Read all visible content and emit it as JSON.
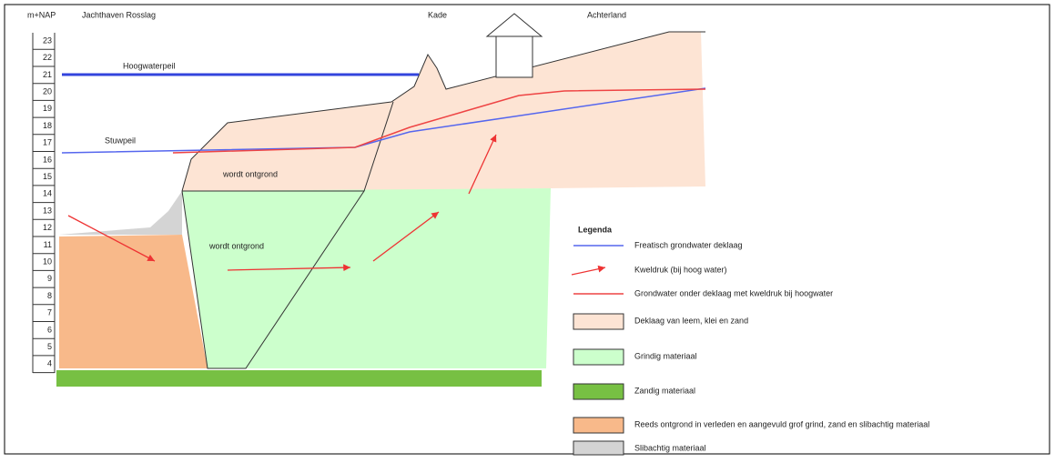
{
  "header": {
    "unit": "m+NAP",
    "left": "Jachthaven Rosslag",
    "middle": "Kade",
    "right": "Achterland"
  },
  "scale": [
    "23",
    "22",
    "21",
    "20",
    "19",
    "18",
    "17",
    "16",
    "15",
    "14",
    "13",
    "12",
    "11",
    "10",
    "9",
    "8",
    "7",
    "6",
    "5",
    "4"
  ],
  "annotations": {
    "high_water": "Hoogwaterpeil",
    "weir_level": "Stuwpeil",
    "excavated_top": "wordt ontgrond",
    "excavated_bottom": "wordt ontgrond"
  },
  "legend": {
    "title": "Legenda",
    "items": [
      "Freatisch grondwater deklaag",
      "Kweldruk (bij hoog water)",
      "Grondwater onder deklaag met kweldruk bij hoogwater",
      "Deklaag van leem, klei en zand",
      "Grindig materiaal",
      "Zandig materiaal",
      "Reeds ontgrond in verleden en aangevuld grof grind, zand en slibachtig materiaal",
      "Slibachtig materiaal"
    ]
  }
}
